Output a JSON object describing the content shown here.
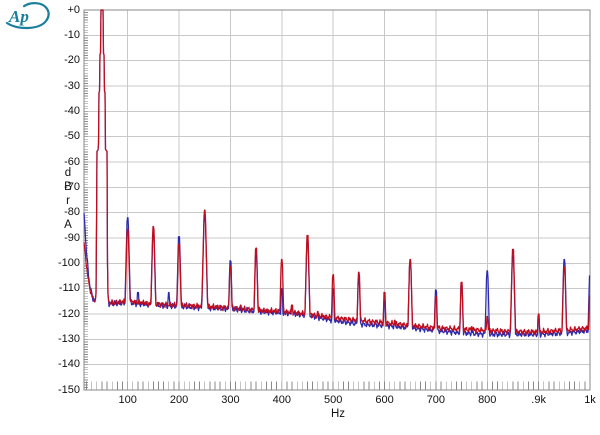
{
  "logo": {
    "text": "Ap",
    "color": "#1a7f9c"
  },
  "chart_data": {
    "type": "line",
    "xlabel": "Hz",
    "ylabel_lines": [
      "d",
      "B",
      "r"
    ],
    "weighting_label": "A",
    "x_range": [
      15,
      1000
    ],
    "y_range": [
      0,
      -150
    ],
    "x_ticks": [
      {
        "hz": 100,
        "label": "100"
      },
      {
        "hz": 200,
        "label": "200"
      },
      {
        "hz": 300,
        "label": "300"
      },
      {
        "hz": 400,
        "label": "400"
      },
      {
        "hz": 500,
        "label": "500"
      },
      {
        "hz": 600,
        "label": "600"
      },
      {
        "hz": 700,
        "label": "700"
      },
      {
        "hz": 800,
        "label": "800"
      },
      {
        "hz": 900,
        "label": ".9k"
      },
      {
        "hz": 1000,
        "label": "1k"
      }
    ],
    "y_ticks": [
      {
        "db": 0,
        "label": "+0"
      },
      {
        "db": -10,
        "label": "-10"
      },
      {
        "db": -20,
        "label": "-20"
      },
      {
        "db": -30,
        "label": "-30"
      },
      {
        "db": -40,
        "label": "-40"
      },
      {
        "db": -50,
        "label": "-50"
      },
      {
        "db": -60,
        "label": "-60"
      },
      {
        "db": -70,
        "label": "-70"
      },
      {
        "db": -80,
        "label": "-80"
      },
      {
        "db": -90,
        "label": "-90"
      },
      {
        "db": -100,
        "label": "-100"
      },
      {
        "db": -110,
        "label": "-110"
      },
      {
        "db": -120,
        "label": "-120"
      },
      {
        "db": -130,
        "label": "-130"
      },
      {
        "db": -140,
        "label": "-140"
      },
      {
        "db": -150,
        "label": "-150"
      }
    ],
    "grid": {
      "line_color": "#c9c9c9",
      "border_color": "#8a8a8a",
      "tick_color": "#8a8a8a"
    },
    "series": [
      {
        "key": "blue",
        "name": "blue-trace",
        "color": "#2a2aae"
      },
      {
        "key": "red",
        "name": "red-trace",
        "color": "#c00d1e"
      }
    ],
    "fundamental": {
      "hz": 50,
      "db": 0,
      "skirt": [
        [
          2,
          0
        ],
        [
          2.6,
          -4
        ],
        [
          2.8,
          -17
        ],
        [
          4.5,
          -18
        ],
        [
          4.8,
          -32
        ],
        [
          6.5,
          -33
        ],
        [
          6.8,
          -55
        ],
        [
          10.5,
          -56
        ],
        [
          10.8,
          -110
        ],
        [
          13,
          -115
        ]
      ]
    },
    "peaks": [
      {
        "hz": 100,
        "red": -86.5,
        "blue": -82
      },
      {
        "hz": 150,
        "red": -85.5,
        "blue": -88
      },
      {
        "hz": 200,
        "red": -92.5,
        "blue": -89.5
      },
      {
        "hz": 250,
        "red": -79,
        "blue": -81
      },
      {
        "hz": 300,
        "red": -101,
        "blue": -99
      },
      {
        "hz": 350,
        "red": -94,
        "blue": -96.5
      },
      {
        "hz": 400,
        "red": -98.5,
        "blue": -110
      },
      {
        "hz": 450,
        "red": -89,
        "blue": -91
      },
      {
        "hz": 500,
        "red": -104.5,
        "blue": -110
      },
      {
        "hz": 550,
        "red": -103.5,
        "blue": -106
      },
      {
        "hz": 600,
        "red": -111.5,
        "blue": -114.5
      },
      {
        "hz": 650,
        "red": -98.5,
        "blue": -99
      },
      {
        "hz": 700,
        "red": -113,
        "blue": -110.5
      },
      {
        "hz": 750,
        "red": -107.5,
        "blue": -108.5
      },
      {
        "hz": 800,
        "red": -121,
        "blue": -103
      },
      {
        "hz": 850,
        "red": -94.5,
        "blue": -97
      },
      {
        "hz": 900,
        "red": -120,
        "blue": -121
      },
      {
        "hz": 950,
        "red": -101.5,
        "blue": -98.5
      },
      {
        "hz": 1000,
        "red": -113,
        "blue": -105
      }
    ],
    "minor_bumps": [
      {
        "hz": 120,
        "red": null,
        "blue": -111.5
      },
      {
        "hz": 180,
        "red": null,
        "blue": -111.5
      },
      {
        "hz": 320,
        "red": -116.5,
        "blue": -117
      },
      {
        "hz": 420,
        "red": -116.5,
        "blue": -117.5
      },
      {
        "hz": 470,
        "red": -119,
        "blue": -119.5
      },
      {
        "hz": 620,
        "red": -122.5,
        "blue": -123.5
      },
      {
        "hz": 770,
        "red": -125,
        "blue": -126
      }
    ],
    "noise_floor": {
      "red": [
        [
          15,
          -92
        ],
        [
          20,
          -101
        ],
        [
          25,
          -109
        ],
        [
          32,
          -114
        ],
        [
          45,
          -115.5
        ],
        [
          70,
          -115.5
        ],
        [
          100,
          -115
        ],
        [
          150,
          -116
        ],
        [
          200,
          -116.5
        ],
        [
          250,
          -117
        ],
        [
          300,
          -117.5
        ],
        [
          350,
          -118.5
        ],
        [
          400,
          -119
        ],
        [
          450,
          -120
        ],
        [
          500,
          -121.5
        ],
        [
          550,
          -122.5
        ],
        [
          600,
          -123.5
        ],
        [
          650,
          -124.5
        ],
        [
          700,
          -125.5
        ],
        [
          750,
          -126
        ],
        [
          800,
          -126.5
        ],
        [
          850,
          -127
        ],
        [
          900,
          -127
        ],
        [
          950,
          -126.5
        ],
        [
          1000,
          -125.5
        ]
      ],
      "blue": [
        [
          15,
          -80
        ],
        [
          20,
          -96
        ],
        [
          25,
          -107
        ],
        [
          32,
          -114
        ],
        [
          45,
          -116
        ],
        [
          70,
          -116
        ],
        [
          100,
          -115.5
        ],
        [
          150,
          -116.5
        ],
        [
          200,
          -117
        ],
        [
          250,
          -117.5
        ],
        [
          300,
          -118
        ],
        [
          350,
          -119
        ],
        [
          400,
          -119.5
        ],
        [
          450,
          -120.5
        ],
        [
          500,
          -122.5
        ],
        [
          550,
          -124
        ],
        [
          600,
          -124.5
        ],
        [
          650,
          -125.5
        ],
        [
          700,
          -126.5
        ],
        [
          750,
          -127.5
        ],
        [
          800,
          -128
        ],
        [
          850,
          -128
        ],
        [
          900,
          -128
        ],
        [
          950,
          -127.5
        ],
        [
          1000,
          -126.5
        ]
      ]
    }
  }
}
